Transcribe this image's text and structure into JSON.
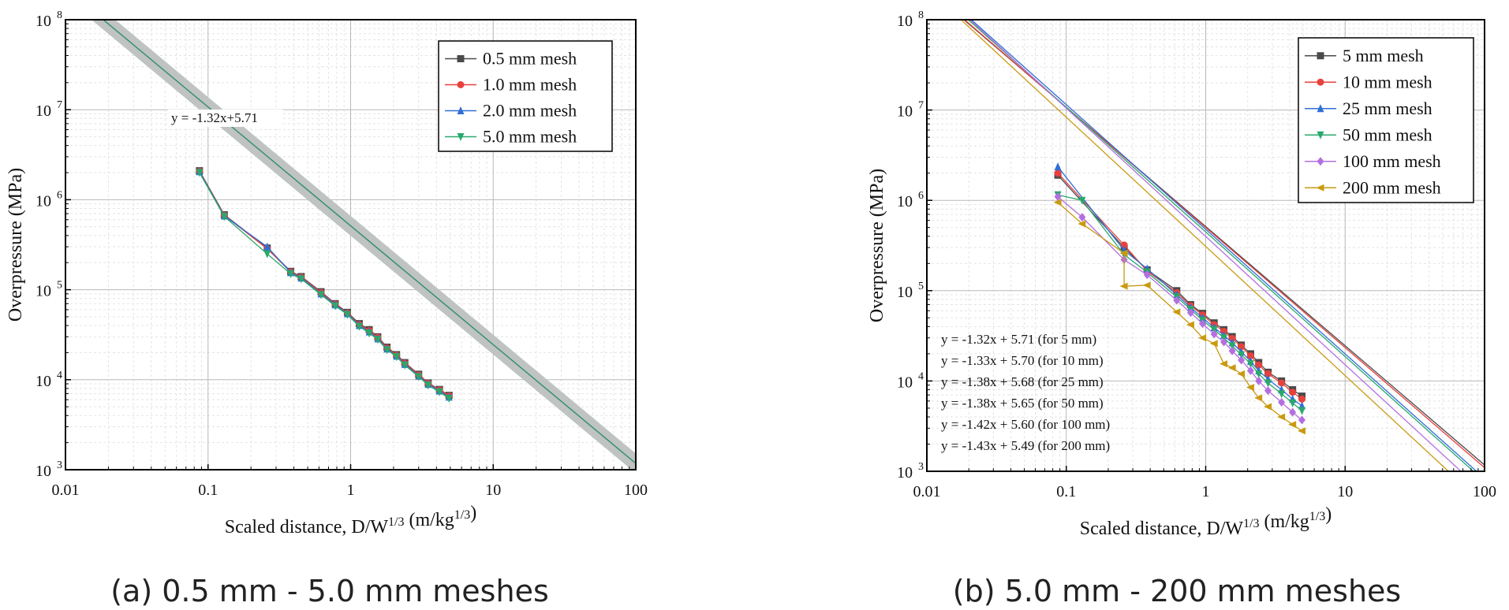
{
  "captions": {
    "left": "(a) 0.5 mm - 5.0 mm meshes",
    "right": "(b) 5.0 mm - 200 mm meshes"
  },
  "axes_text": {
    "xlabel": "Scaled distance, D/W",
    "x_exp1": "1/3",
    "x_units": " (m/kg",
    "x_exp2": "1/3",
    "x_close": ")",
    "ylabel": "Overpressure (MPa)"
  },
  "chart_data": [
    {
      "type": "line",
      "title": "",
      "xscale": "log",
      "yscale": "log",
      "xlim": [
        0.01,
        100
      ],
      "ylim": [
        1000,
        100000000
      ],
      "xticks": [
        0.01,
        0.1,
        1,
        10,
        100
      ],
      "xtick_labels": [
        "0.01",
        "0.1",
        "1",
        "10",
        "100"
      ],
      "yticks": [
        1000,
        10000,
        100000,
        1000000,
        10000000,
        100000000
      ],
      "ytick_exps": [
        "3",
        "4",
        "5",
        "6",
        "7",
        "8"
      ],
      "ytick_base": "10",
      "legend_position": "top-right",
      "fit": {
        "slope": -1.32,
        "intercept": 5.71,
        "band": true,
        "label": "y = -1.32x+5.71",
        "color": "#2e8b70"
      },
      "series": [
        {
          "name": "0.5 mm mesh",
          "color": "#4a4a4a",
          "marker": "square",
          "x": [
            0.087,
            0.13,
            0.26,
            0.38,
            0.45,
            0.62,
            0.78,
            0.95,
            1.15,
            1.35,
            1.55,
            1.8,
            2.1,
            2.4,
            3.0,
            3.5,
            4.2,
            4.9
          ],
          "y": [
            2100000,
            680000,
            290000,
            160000,
            140000,
            95000,
            70000,
            56000,
            42000,
            36000,
            30000,
            23000,
            19000,
            15500,
            11500,
            9200,
            7800,
            6700
          ]
        },
        {
          "name": "1.0 mm mesh",
          "color": "#e8413c",
          "marker": "circle",
          "x": [
            0.087,
            0.13,
            0.26,
            0.38,
            0.45,
            0.62,
            0.78,
            0.95,
            1.15,
            1.35,
            1.55,
            1.8,
            2.1,
            2.4,
            3.0,
            3.5,
            4.2,
            4.9
          ],
          "y": [
            2080000,
            670000,
            285000,
            158000,
            138000,
            93000,
            69000,
            55000,
            41000,
            35000,
            29500,
            22500,
            18700,
            15200,
            11300,
            9100,
            7700,
            6600
          ]
        },
        {
          "name": "2.0 mm mesh",
          "color": "#2f6fd6",
          "marker": "triangle-up",
          "x": [
            0.087,
            0.13,
            0.26,
            0.38,
            0.45,
            0.62,
            0.78,
            0.95,
            1.15,
            1.35,
            1.55,
            1.8,
            2.1,
            2.4,
            3.0,
            3.5,
            4.2,
            4.9
          ],
          "y": [
            2050000,
            660000,
            300000,
            155000,
            135000,
            90000,
            68000,
            54000,
            40000,
            34000,
            28500,
            22000,
            18300,
            14800,
            11000,
            8900,
            7500,
            6400
          ]
        },
        {
          "name": "5.0 mm mesh",
          "color": "#2aa86b",
          "marker": "triangle-down",
          "x": [
            0.087,
            0.13,
            0.26,
            0.38,
            0.45,
            0.62,
            0.78,
            0.95,
            1.15,
            1.35,
            1.55,
            1.8,
            2.1,
            2.4,
            3.0,
            3.5,
            4.2,
            4.9
          ],
          "y": [
            2000000,
            650000,
            250000,
            150000,
            132000,
            88000,
            66000,
            53000,
            39000,
            33000,
            28000,
            21500,
            18000,
            14500,
            10800,
            8700,
            7300,
            6200
          ]
        }
      ]
    },
    {
      "type": "line",
      "title": "",
      "xscale": "log",
      "yscale": "log",
      "xlim": [
        0.01,
        100
      ],
      "ylim": [
        1000,
        100000000
      ],
      "xticks": [
        0.01,
        0.1,
        1,
        10,
        100
      ],
      "xtick_labels": [
        "0.01",
        "0.1",
        "1",
        "10",
        "100"
      ],
      "yticks": [
        1000,
        10000,
        100000,
        1000000,
        10000000,
        100000000
      ],
      "ytick_exps": [
        "3",
        "4",
        "5",
        "6",
        "7",
        "8"
      ],
      "ytick_base": "10",
      "legend_position": "top-right",
      "series": [
        {
          "name": "5 mm mesh",
          "color": "#4a4a4a",
          "marker": "square",
          "fit": {
            "slope": -1.32,
            "intercept": 5.71,
            "label": "y = -1.32x + 5.71 (for 5 mm)"
          },
          "x": [
            0.087,
            0.26,
            0.38,
            0.62,
            0.78,
            0.95,
            1.15,
            1.35,
            1.55,
            1.8,
            2.1,
            2.4,
            2.8,
            3.5,
            4.2,
            4.9
          ],
          "y": [
            1900000,
            300000,
            170000,
            100000,
            70000,
            56000,
            44000,
            37000,
            31000,
            25000,
            20000,
            16000,
            12500,
            10000,
            8000,
            6800
          ]
        },
        {
          "name": "10 mm mesh",
          "color": "#e8413c",
          "marker": "circle",
          "fit": {
            "slope": -1.33,
            "intercept": 5.7,
            "label": "y = -1.33x + 5.70 (for 10 mm)"
          },
          "x": [
            0.087,
            0.26,
            0.38,
            0.62,
            0.78,
            0.95,
            1.15,
            1.35,
            1.55,
            1.8,
            2.1,
            2.4,
            2.8,
            3.5,
            4.2,
            4.9
          ],
          "y": [
            2000000,
            320000,
            165000,
            95000,
            68000,
            54000,
            42000,
            35500,
            29500,
            24000,
            19000,
            15000,
            12000,
            9500,
            7500,
            6300
          ]
        },
        {
          "name": "25 mm mesh",
          "color": "#2f6fd6",
          "marker": "triangle-up",
          "fit": {
            "slope": -1.38,
            "intercept": 5.68,
            "label": "y = -1.38x + 5.68 (for 25 mm)"
          },
          "x": [
            0.087,
            0.26,
            0.38,
            0.62,
            0.78,
            0.95,
            1.15,
            1.35,
            1.55,
            1.8,
            2.1,
            2.4,
            2.8,
            3.5,
            4.2,
            4.9
          ],
          "y": [
            2350000,
            280000,
            175000,
            90000,
            65000,
            50000,
            39000,
            32000,
            26500,
            21000,
            16500,
            13000,
            10500,
            8000,
            6300,
            5300
          ]
        },
        {
          "name": "50 mm mesh",
          "color": "#2aa86b",
          "marker": "triangle-down",
          "fit": {
            "slope": -1.38,
            "intercept": 5.65,
            "label": "y = -1.38x + 5.65 (for 50 mm)"
          },
          "x": [
            0.087,
            0.13,
            0.26,
            0.38,
            0.62,
            0.78,
            0.95,
            1.15,
            1.35,
            1.55,
            1.8,
            2.1,
            2.4,
            2.8,
            3.5,
            4.2,
            4.9
          ],
          "y": [
            1150000,
            1000000,
            250000,
            160000,
            85000,
            62000,
            47000,
            37000,
            30000,
            24500,
            19500,
            15500,
            12000,
            9500,
            7200,
            5700,
            4700
          ]
        },
        {
          "name": "100 mm mesh",
          "color": "#b36fe0",
          "marker": "diamond",
          "fit": {
            "slope": -1.42,
            "intercept": 5.6,
            "label": "y = -1.42x + 5.60 (for 100 mm)"
          },
          "x": [
            0.087,
            0.13,
            0.26,
            0.38,
            0.62,
            0.78,
            0.95,
            1.15,
            1.35,
            1.55,
            1.8,
            2.1,
            2.4,
            2.8,
            3.5,
            4.2,
            4.9
          ],
          "y": [
            1100000,
            650000,
            220000,
            150000,
            78000,
            57000,
            43000,
            33000,
            27000,
            21500,
            17000,
            13000,
            10000,
            7800,
            5800,
            4500,
            3700
          ]
        },
        {
          "name": "200 mm mesh",
          "color": "#c99a12",
          "marker": "triangle-left",
          "fit": {
            "slope": -1.43,
            "intercept": 5.49,
            "label": "y = -1.43x + 5.49 (for 200 mm)"
          },
          "x": [
            0.087,
            0.13,
            0.26,
            0.26,
            0.38,
            0.62,
            0.78,
            0.95,
            1.15,
            1.35,
            1.55,
            1.8,
            2.1,
            2.4,
            2.8,
            3.5,
            4.2,
            4.9
          ],
          "y": [
            950000,
            550000,
            260000,
            112000,
            115000,
            58000,
            42000,
            30000,
            26000,
            15500,
            14000,
            12000,
            8500,
            6500,
            5200,
            4000,
            3300,
            2800
          ]
        }
      ]
    }
  ]
}
